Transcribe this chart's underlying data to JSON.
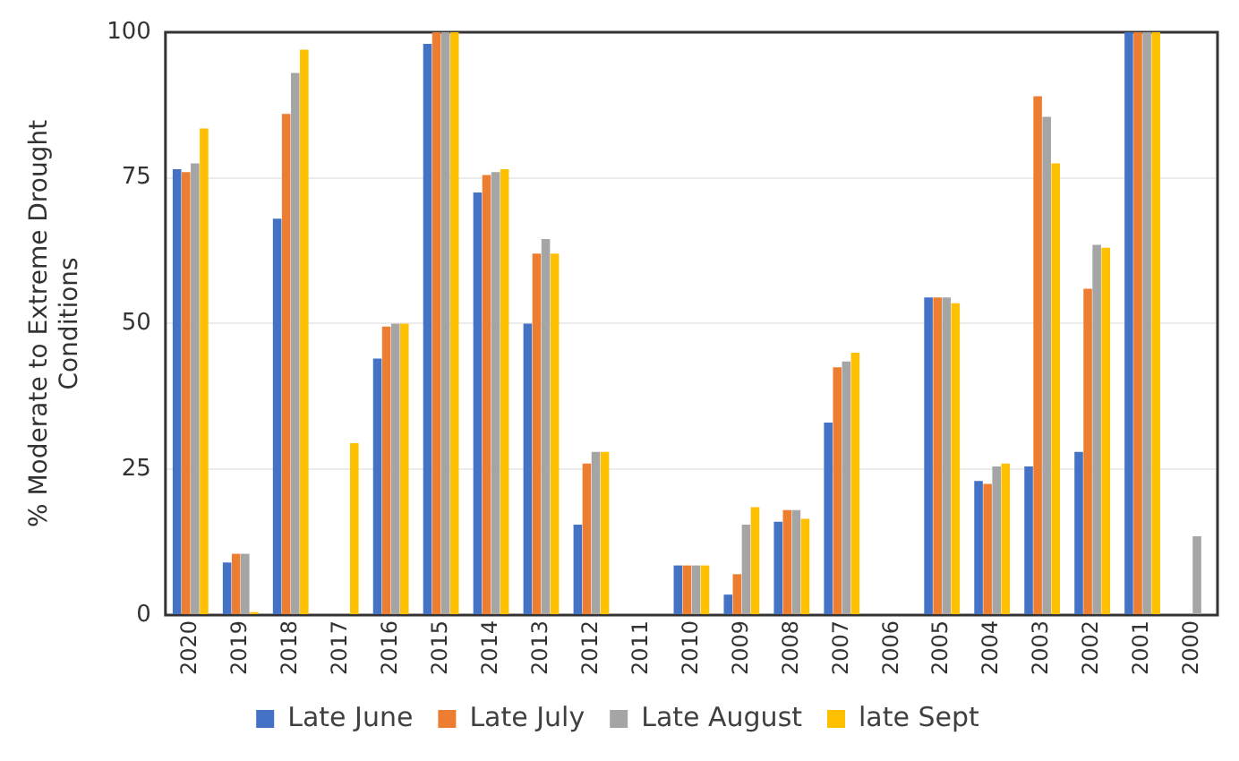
{
  "chart_data": {
    "type": "bar",
    "ylabel": "% Moderate to Extreme Drought Conditions",
    "categories": [
      "2020",
      "2019",
      "2018",
      "2017",
      "2016",
      "2015",
      "2014",
      "2013",
      "2012",
      "2011",
      "2010",
      "2009",
      "2008",
      "2007",
      "2006",
      "2005",
      "2004",
      "2003",
      "2002",
      "2001",
      "2000"
    ],
    "series": [
      {
        "name": "Late June",
        "color": "#4472c4",
        "values": [
          76.5,
          9,
          68,
          0,
          44,
          98,
          72.5,
          50,
          15.5,
          0,
          8.5,
          3.5,
          16,
          33,
          0,
          54.5,
          23,
          25.5,
          28,
          100,
          0
        ]
      },
      {
        "name": "Late July",
        "color": "#ed7d31",
        "values": [
          76,
          10.5,
          86,
          0,
          49.5,
          100,
          75.5,
          62,
          26,
          0,
          8.5,
          7,
          18,
          42.5,
          0,
          54.5,
          22.5,
          89,
          56,
          100,
          0
        ]
      },
      {
        "name": "Late August",
        "color": "#a5a5a5",
        "values": [
          77.5,
          10.5,
          93,
          0,
          50,
          100,
          76,
          64.5,
          28,
          0,
          8.5,
          15.5,
          18,
          43.5,
          0,
          54.5,
          25.5,
          85.5,
          63.5,
          100,
          13.5
        ]
      },
      {
        "name": "late Sept",
        "color": "#ffc000",
        "values": [
          83.5,
          0.5,
          97,
          29.5,
          50,
          100,
          76.5,
          62,
          28,
          0,
          8.5,
          18.5,
          16.5,
          45,
          0,
          53.5,
          26,
          77.5,
          63,
          100,
          0
        ]
      }
    ],
    "ylim": [
      0,
      100
    ],
    "yticks": [
      0,
      25,
      50,
      75,
      100
    ],
    "grid": "y",
    "legend": "bottom"
  }
}
